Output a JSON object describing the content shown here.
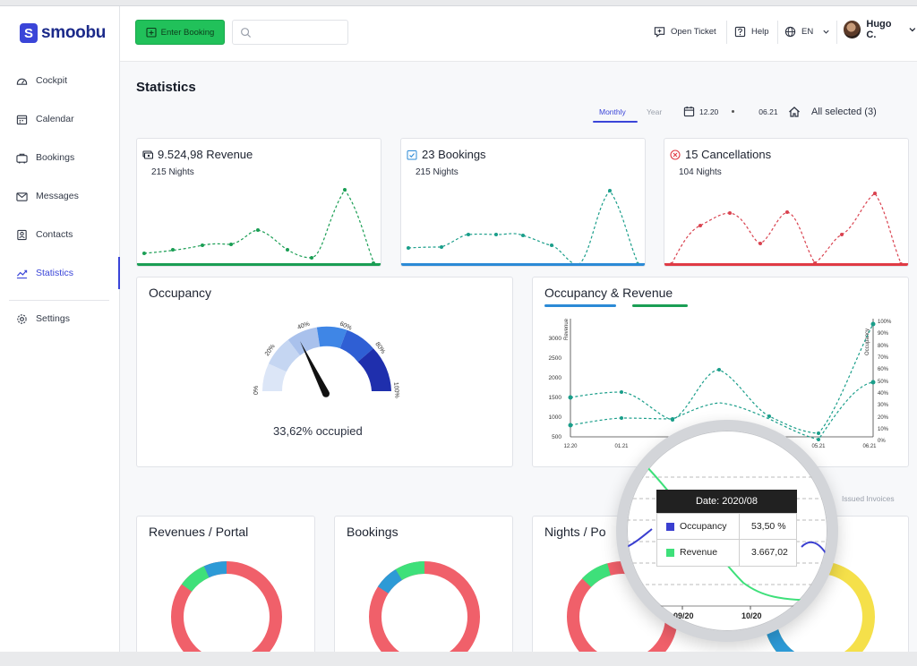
{
  "app": {
    "logo_text": "smoobu",
    "logo_mark": "S"
  },
  "sidebar": {
    "items": [
      {
        "label": "Cockpit",
        "icon": "cockpit-icon"
      },
      {
        "label": "Calendar",
        "icon": "calendar-icon"
      },
      {
        "label": "Bookings",
        "icon": "bookings-icon"
      },
      {
        "label": "Messages",
        "icon": "messages-icon"
      },
      {
        "label": "Contacts",
        "icon": "contacts-icon"
      },
      {
        "label": "Statistics",
        "icon": "statistics-icon",
        "active": true
      },
      {
        "label": "Settings",
        "icon": "settings-icon"
      }
    ]
  },
  "topbar": {
    "enter_booking": "Enter Booking",
    "search_placeholder": "",
    "open_ticket": "Open Ticket",
    "help": "Help",
    "language": "EN",
    "user": "Hugo C."
  },
  "page": {
    "title": "Statistics"
  },
  "filters": {
    "tabs": [
      "Monthly",
      "Year"
    ],
    "active_tab": "Monthly",
    "date_from": "12.20",
    "date_to": "06.21",
    "properties": "All selected (3)"
  },
  "kpis": [
    {
      "title": "9.524,98 Revenue",
      "sub": "215 Nights",
      "color": "#1a9e54",
      "icon": "money-icon"
    },
    {
      "title": "23 Bookings",
      "sub": "215 Nights",
      "color": "#2b8ad6",
      "icon": "check-calendar-icon"
    },
    {
      "title": "15 Cancellations",
      "sub": "104 Nights",
      "color": "#e03b45",
      "icon": "cancel-icon"
    }
  ],
  "occupancy": {
    "title": "Occupancy",
    "occupied_text": "33,62% occupied",
    "value_percent": 33.62,
    "ticks": [
      "0%",
      "20%",
      "40%",
      "60%",
      "80%",
      "100%"
    ]
  },
  "occ_rev": {
    "title": "Occupancy & Revenue",
    "legend_colors": [
      "#2b8ad6",
      "#1a9e54"
    ],
    "left_axis_label": "Revenue",
    "right_axis_label": "Occupancy",
    "left_ticks": [
      "500",
      "1000",
      "1500",
      "2000",
      "2500",
      "3000"
    ],
    "right_ticks": [
      "0%",
      "10%",
      "20%",
      "30%",
      "40%",
      "50%",
      "60%",
      "70%",
      "80%",
      "90%",
      "100%"
    ],
    "x_ticks": [
      "12.20",
      "01.21",
      "05.21",
      "06.21"
    ]
  },
  "issued_invoices": "Issued Invoices",
  "bottom_cards": [
    {
      "title": "Revenues / Portal"
    },
    {
      "title": "Bookings"
    },
    {
      "title": "Nights / Po"
    }
  ],
  "tooltip": {
    "date": "Date: 2020/08",
    "rows": [
      {
        "name": "Occupancy",
        "value": "53,50 %",
        "color": "#3a3fd0"
      },
      {
        "name": "Revenue",
        "value": "3.667,02",
        "color": "#3ee07a"
      }
    ],
    "x_ticks": [
      "09/20",
      "10/20"
    ]
  },
  "colors": {
    "accent": "#3a45d8",
    "green": "#21c15a",
    "donut_red": "#f0606a",
    "donut_green": "#3ee07a",
    "donut_blue": "#2d9ad6",
    "donut_yellow": "#f5e04a"
  }
}
